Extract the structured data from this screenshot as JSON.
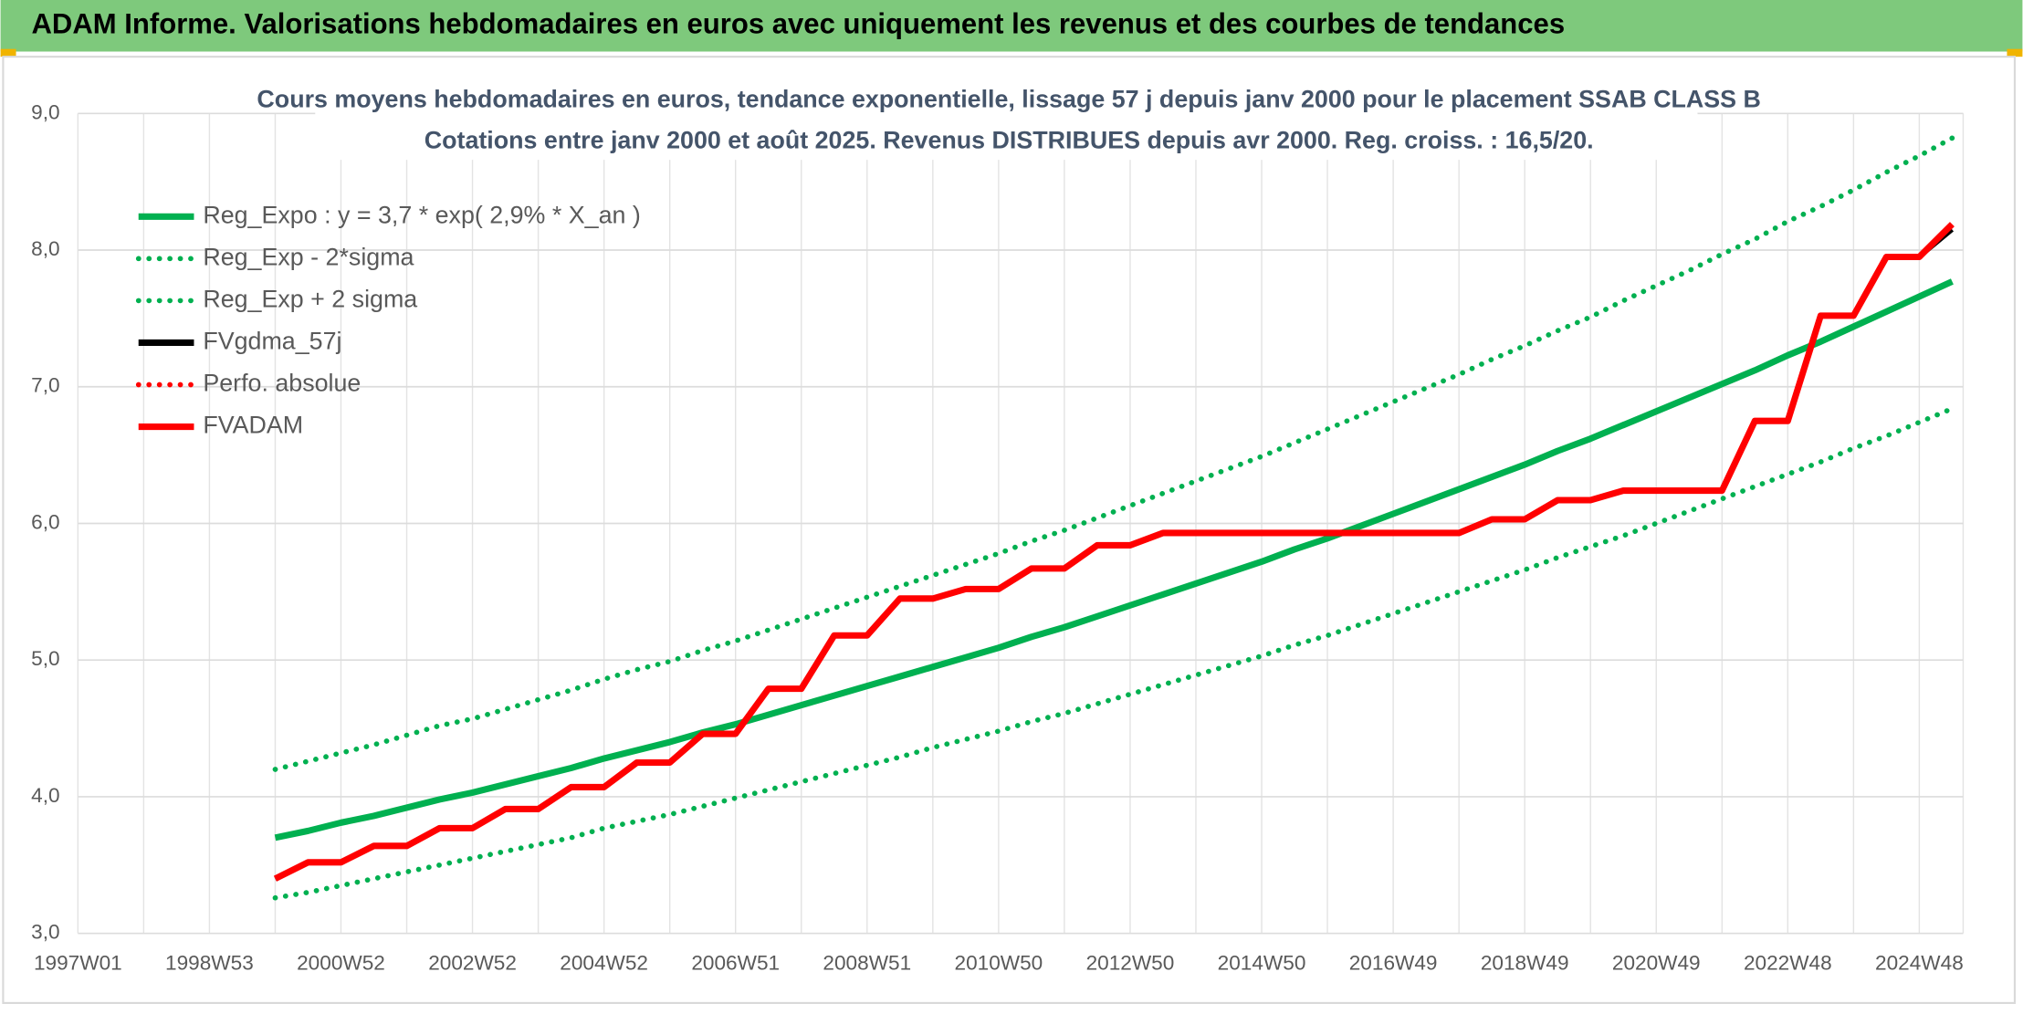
{
  "header": {
    "title": "ADAM Informe. Valorisations hebdomadaires en euros avec uniquement les revenus et des courbes de tendances"
  },
  "chart_data": {
    "type": "line",
    "title": "Cours moyens hebdomadaires en euros, tendance exponentielle, lissage 57 j depuis janv 2000 pour le placement SSAB CLASS B",
    "subtitle": "Cotations entre janv 2000 et août 2025. Revenus DISTRIBUES depuis avr 2000. Reg. croiss. : 16,5/20.",
    "categories": [
      "1997W01",
      null,
      null,
      null,
      "1998W53",
      null,
      null,
      null,
      "2000W52",
      null,
      null,
      null,
      "2002W52",
      null,
      null,
      null,
      "2004W52",
      null,
      null,
      null,
      "2006W51",
      null,
      null,
      null,
      "2008W51",
      null,
      null,
      null,
      "2010W50",
      null,
      null,
      null,
      "2012W50",
      null,
      null,
      null,
      "2014W50",
      null,
      null,
      null,
      "2016W49",
      null,
      null,
      null,
      "2018W49",
      null,
      null,
      null,
      "2020W49",
      null,
      null,
      null,
      "2022W48",
      null,
      null,
      null,
      "2024W48",
      null
    ],
    "ylim": [
      3,
      9
    ],
    "yticks": [
      {
        "value": 3,
        "label": "3,0"
      },
      {
        "value": 4,
        "label": "4,0"
      },
      {
        "value": 5,
        "label": "5,0"
      },
      {
        "value": 6,
        "label": "6,0"
      },
      {
        "value": 7,
        "label": "7,0"
      },
      {
        "value": 8,
        "label": "8,0"
      },
      {
        "value": 9,
        "label": "9,0"
      }
    ],
    "grid": true,
    "legend": "upper-left",
    "series": [
      {
        "name": "Reg_Expo : y = 3,7 * exp( 2,9% *  X_an )",
        "color": "#00b050",
        "style": "solid",
        "values": [
          null,
          null,
          null,
          null,
          null,
          null,
          3.7,
          3.75,
          3.81,
          3.86,
          3.92,
          3.98,
          4.03,
          4.09,
          4.15,
          4.21,
          4.28,
          4.34,
          4.4,
          4.47,
          4.53,
          4.6,
          4.67,
          4.74,
          4.81,
          4.88,
          4.95,
          5.02,
          5.09,
          5.17,
          5.24,
          5.32,
          5.4,
          5.48,
          5.56,
          5.64,
          5.72,
          5.81,
          5.89,
          5.98,
          6.07,
          6.16,
          6.25,
          6.34,
          6.43,
          6.53,
          6.62,
          6.72,
          6.82,
          6.92,
          7.02,
          7.12,
          7.23,
          7.33,
          7.44,
          7.55,
          7.66,
          7.77
        ]
      },
      {
        "name": "Reg_Exp - 2*sigma",
        "color": "#00b050",
        "style": "dotted",
        "values": [
          null,
          null,
          null,
          null,
          null,
          null,
          3.26,
          3.3,
          3.35,
          3.4,
          3.45,
          3.5,
          3.55,
          3.6,
          3.65,
          3.7,
          3.77,
          3.82,
          3.87,
          3.93,
          3.99,
          4.05,
          4.11,
          4.17,
          4.23,
          4.29,
          4.36,
          4.42,
          4.48,
          4.55,
          4.61,
          4.68,
          4.75,
          4.82,
          4.89,
          4.96,
          5.03,
          5.11,
          5.18,
          5.26,
          5.34,
          5.42,
          5.5,
          5.58,
          5.66,
          5.75,
          5.83,
          5.91,
          6.0,
          6.09,
          6.18,
          6.27,
          6.36,
          6.45,
          6.55,
          6.64,
          6.74,
          6.84
        ]
      },
      {
        "name": "Reg_Exp + 2 sigma",
        "color": "#00b050",
        "style": "dotted",
        "values": [
          null,
          null,
          null,
          null,
          null,
          null,
          4.2,
          4.26,
          4.32,
          4.38,
          4.45,
          4.52,
          4.57,
          4.64,
          4.71,
          4.78,
          4.86,
          4.93,
          4.99,
          5.07,
          5.14,
          5.22,
          5.3,
          5.38,
          5.46,
          5.54,
          5.62,
          5.7,
          5.78,
          5.87,
          5.95,
          6.04,
          6.13,
          6.22,
          6.31,
          6.4,
          6.49,
          6.59,
          6.69,
          6.79,
          6.89,
          6.99,
          7.09,
          7.2,
          7.3,
          7.41,
          7.51,
          7.63,
          7.74,
          7.85,
          7.97,
          8.08,
          8.21,
          8.32,
          8.44,
          8.57,
          8.69,
          8.82
        ]
      },
      {
        "name": "FVgdma_57j",
        "color": "#000000",
        "style": "solid",
        "values": [
          null,
          null,
          null,
          null,
          null,
          null,
          3.4,
          3.52,
          3.52,
          3.64,
          3.64,
          3.77,
          3.77,
          3.91,
          3.91,
          4.07,
          4.07,
          4.25,
          4.25,
          4.46,
          4.46,
          4.79,
          4.79,
          5.18,
          5.18,
          5.45,
          5.45,
          5.52,
          5.52,
          5.67,
          5.67,
          5.84,
          5.84,
          5.93,
          5.93,
          5.93,
          5.93,
          5.93,
          5.93,
          5.93,
          5.93,
          5.93,
          5.93,
          6.03,
          6.03,
          6.17,
          6.17,
          6.24,
          6.24,
          6.24,
          6.24,
          6.75,
          6.75,
          7.52,
          7.52,
          7.95,
          7.95,
          8.15
        ]
      },
      {
        "name": "Perfo. absolue",
        "color": "#ff0000",
        "style": "dotted",
        "values": [
          null,
          null,
          null,
          null,
          null,
          null,
          null,
          null,
          null,
          null,
          null,
          null,
          null,
          null,
          null,
          null,
          null,
          null,
          null,
          null,
          null,
          null,
          null,
          null,
          null,
          null,
          null,
          null,
          null,
          null,
          null,
          null,
          null,
          null,
          null,
          null,
          null,
          null,
          null,
          null,
          null,
          null,
          null,
          null,
          null,
          null,
          null,
          null,
          null,
          null,
          null,
          null,
          null,
          null,
          null,
          null,
          null,
          null
        ]
      },
      {
        "name": "FVADAM",
        "color": "#ff0000",
        "style": "solid",
        "values": [
          null,
          null,
          null,
          null,
          null,
          null,
          3.4,
          3.52,
          3.52,
          3.64,
          3.64,
          3.77,
          3.77,
          3.91,
          3.91,
          4.07,
          4.07,
          4.25,
          4.25,
          4.46,
          4.46,
          4.79,
          4.79,
          5.18,
          5.18,
          5.45,
          5.45,
          5.52,
          5.52,
          5.67,
          5.67,
          5.84,
          5.84,
          5.93,
          5.93,
          5.93,
          5.93,
          5.93,
          5.93,
          5.93,
          5.93,
          5.93,
          5.93,
          6.03,
          6.03,
          6.17,
          6.17,
          6.24,
          6.24,
          6.24,
          6.24,
          6.75,
          6.75,
          7.52,
          7.52,
          7.95,
          7.95,
          8.19
        ]
      }
    ]
  }
}
